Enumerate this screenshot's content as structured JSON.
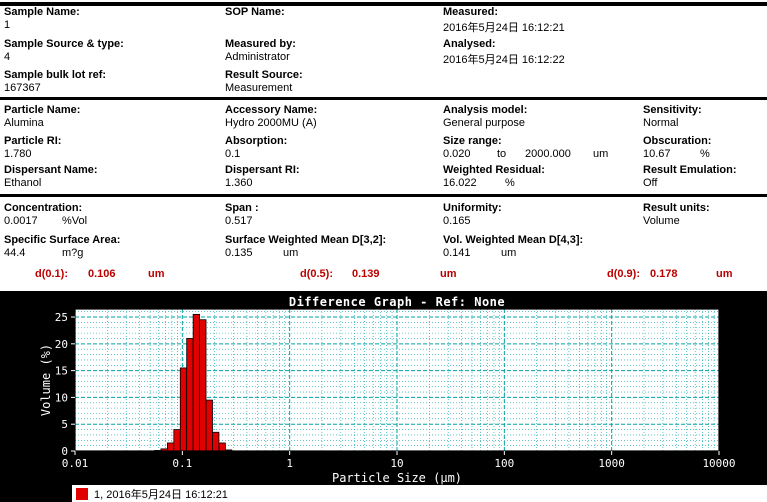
{
  "fields": {
    "sample_name": {
      "label": "Sample Name:",
      "value": "1"
    },
    "sop_name": {
      "label": "SOP Name:",
      "value": ""
    },
    "measured": {
      "label": "Measured:",
      "value": "2016年5月24日 16:12:21"
    },
    "sample_source": {
      "label": "Sample Source & type:",
      "value": "4"
    },
    "measured_by": {
      "label": "Measured by:",
      "value": "Administrator"
    },
    "analysed": {
      "label": "Analysed:",
      "value": "2016年5月24日 16:12:22"
    },
    "bulk_lot_ref": {
      "label": "Sample bulk lot ref:",
      "value": "167367"
    },
    "result_source": {
      "label": "Result Source:",
      "value": "Measurement"
    },
    "particle_name": {
      "label": "Particle Name:",
      "value": "Alumina"
    },
    "accessory_name": {
      "label": "Accessory Name:",
      "value": "Hydro 2000MU (A)"
    },
    "analysis_model": {
      "label": "Analysis model:",
      "value": "General purpose"
    },
    "sensitivity": {
      "label": "Sensitivity:",
      "value": "Normal"
    },
    "particle_ri": {
      "label": "Particle RI:",
      "value": "1.780"
    },
    "absorption": {
      "label": "Absorption:",
      "value": "0.1"
    },
    "size_range": {
      "label": "Size range:",
      "value": "0.020",
      "to": "to",
      "max": "2000.000",
      "unit": "um"
    },
    "obscuration": {
      "label": "Obscuration:",
      "value": "10.67",
      "unit": "%"
    },
    "dispersant_name": {
      "label": "Dispersant Name:",
      "value": "Ethanol"
    },
    "dispersant_ri": {
      "label": "Dispersant RI:",
      "value": "1.360"
    },
    "weighted_residual": {
      "label": "Weighted Residual:",
      "value": "16.022",
      "unit": "%"
    },
    "result_emulation": {
      "label": "Result Emulation:",
      "value": "Off"
    },
    "concentration": {
      "label": "Concentration:",
      "value": "0.0017",
      "unit": "%Vol"
    },
    "span": {
      "label": "Span :",
      "value": "0.517"
    },
    "uniformity": {
      "label": "Uniformity:",
      "value": "0.165"
    },
    "result_units": {
      "label": "Result units:",
      "value": "Volume"
    },
    "ssa": {
      "label": "Specific Surface Area:",
      "value": "44.4",
      "unit": "m?g"
    },
    "d32": {
      "label": "Surface Weighted Mean D[3,2]:",
      "value": "0.135",
      "unit": "um"
    },
    "d43": {
      "label": "Vol. Weighted Mean D[4,3]:",
      "value": "0.141",
      "unit": "um"
    }
  },
  "percentiles": [
    {
      "label": "d(0.1):",
      "value": "0.106",
      "unit": "um"
    },
    {
      "label": "d(0.5):",
      "value": "0.139",
      "unit": "um"
    },
    {
      "label": "d(0.9):",
      "value": "0.178",
      "unit": "um"
    }
  ],
  "colors": {
    "percentile_text": "#bb0000",
    "grid_teal": "#00a3a3",
    "bar_red": "#e00000"
  },
  "chart_data": {
    "type": "bar",
    "title": "Difference Graph - Ref: None",
    "xlabel": "Particle Size (μm)",
    "ylabel": "Volume (%)",
    "x_scale": "log",
    "xlim": [
      0.01,
      10000
    ],
    "ylim": [
      0,
      26.5
    ],
    "yticks": [
      0,
      5,
      10,
      15,
      20,
      25
    ],
    "xticks": [
      0.01,
      0.1,
      1,
      10,
      100,
      1000,
      10000
    ],
    "xtick_labels": [
      "0.01",
      "0.1",
      "1",
      "10",
      "100",
      "1000",
      "10000"
    ],
    "grid": true,
    "grid_color": "#00a3a3",
    "bar_color": "#e00000",
    "bar_edge_color": "#000000",
    "legend_text": "1, 2016年5月24日 16:12:21",
    "bin_edges_um": [
      0.055,
      0.0632,
      0.0726,
      0.0833,
      0.0957,
      0.1098,
      0.1261,
      0.1448,
      0.1663,
      0.1909,
      0.2192,
      0.2517,
      0.289
    ],
    "values_volume_pct": [
      0.1,
      0.4,
      1.5,
      4.0,
      15.5,
      21.0,
      25.5,
      24.5,
      9.5,
      3.5,
      1.5,
      0.2
    ]
  }
}
